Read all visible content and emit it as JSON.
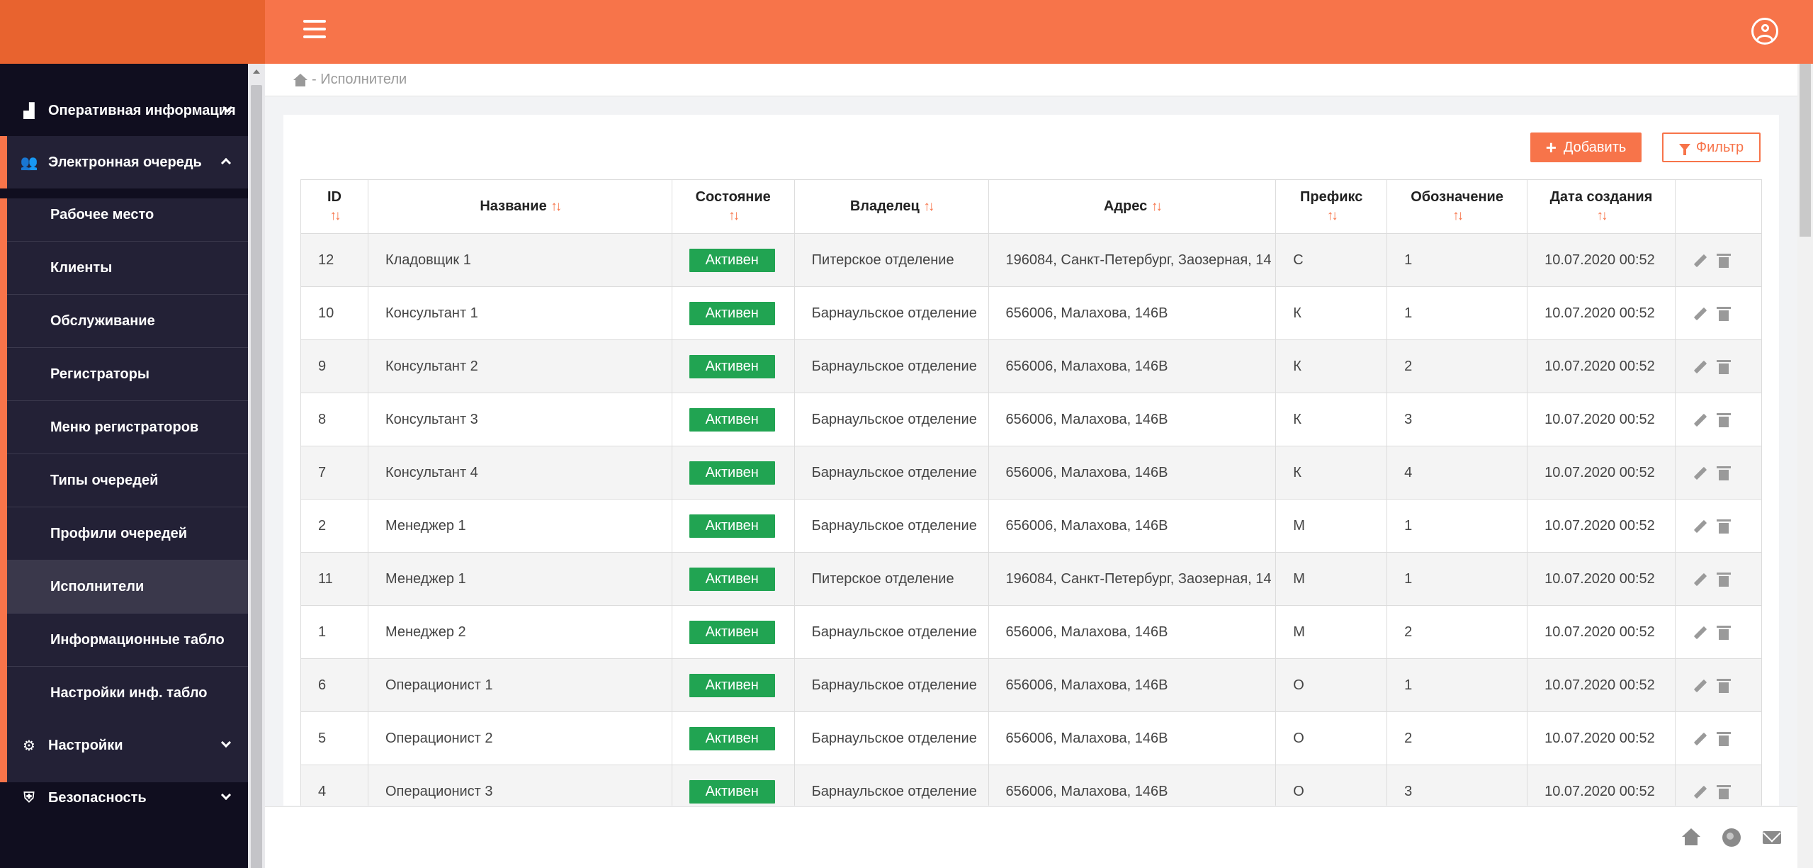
{
  "header": {
    "menu_icon": "hamburger-icon",
    "user_icon": "user-circle-icon"
  },
  "sidebar": {
    "top_items": [
      {
        "label": "Оперативная информация",
        "icon": "chart-icon"
      },
      {
        "label": "Электронная очередь",
        "icon": "users-icon"
      }
    ],
    "submenu": [
      {
        "label": "Рабочее место"
      },
      {
        "label": "Клиенты"
      },
      {
        "label": "Обслуживание"
      },
      {
        "label": "Регистраторы"
      },
      {
        "label": "Меню регистраторов"
      },
      {
        "label": "Типы очередей"
      },
      {
        "label": "Профили очередей"
      },
      {
        "label": "Исполнители",
        "active": true
      },
      {
        "label": "Информационные табло"
      },
      {
        "label": "Настройки инф. табло"
      }
    ],
    "bottom_items": [
      {
        "label": "Настройки",
        "icon": "gear-icon"
      },
      {
        "label": "Безопасность",
        "icon": "shield-icon"
      }
    ]
  },
  "breadcrumb": {
    "text": "- Исполнители"
  },
  "toolbar": {
    "add_label": "Добавить",
    "filter_label": "Фильтр"
  },
  "table": {
    "headers": [
      "ID",
      "Название",
      "Состояние",
      "Владелец",
      "Адрес",
      "Префикс",
      "Обозначение",
      "Дата создания"
    ],
    "rows": [
      {
        "id": "12",
        "name": "Кладовщик 1",
        "status": "Активен",
        "owner": "Питерское отделение",
        "address": "196084, Санкт-Петербург, Заозерная, 14",
        "prefix": "С",
        "designation": "1",
        "created": "10.07.2020 00:52"
      },
      {
        "id": "10",
        "name": "Консультант 1",
        "status": "Активен",
        "owner": "Барнаульское отделение",
        "address": "656006, Малахова, 146В",
        "prefix": "К",
        "designation": "1",
        "created": "10.07.2020 00:52"
      },
      {
        "id": "9",
        "name": "Консультант 2",
        "status": "Активен",
        "owner": "Барнаульское отделение",
        "address": "656006, Малахова, 146В",
        "prefix": "К",
        "designation": "2",
        "created": "10.07.2020 00:52"
      },
      {
        "id": "8",
        "name": "Консультант 3",
        "status": "Активен",
        "owner": "Барнаульское отделение",
        "address": "656006, Малахова, 146В",
        "prefix": "К",
        "designation": "3",
        "created": "10.07.2020 00:52"
      },
      {
        "id": "7",
        "name": "Консультант 4",
        "status": "Активен",
        "owner": "Барнаульское отделение",
        "address": "656006, Малахова, 146В",
        "prefix": "К",
        "designation": "4",
        "created": "10.07.2020 00:52"
      },
      {
        "id": "2",
        "name": "Менеджер 1",
        "status": "Активен",
        "owner": "Барнаульское отделение",
        "address": "656006, Малахова, 146В",
        "prefix": "М",
        "designation": "1",
        "created": "10.07.2020 00:52"
      },
      {
        "id": "11",
        "name": "Менеджер 1",
        "status": "Активен",
        "owner": "Питерское отделение",
        "address": "196084, Санкт-Петербург, Заозерная, 14",
        "prefix": "М",
        "designation": "1",
        "created": "10.07.2020 00:52"
      },
      {
        "id": "1",
        "name": "Менеджер 2",
        "status": "Активен",
        "owner": "Барнаульское отделение",
        "address": "656006, Малахова, 146В",
        "prefix": "М",
        "designation": "2",
        "created": "10.07.2020 00:52"
      },
      {
        "id": "6",
        "name": "Операционист 1",
        "status": "Активен",
        "owner": "Барнаульское отделение",
        "address": "656006, Малахова, 146В",
        "prefix": "О",
        "designation": "1",
        "created": "10.07.2020 00:52"
      },
      {
        "id": "5",
        "name": "Операционист 2",
        "status": "Активен",
        "owner": "Барнаульское отделение",
        "address": "656006, Малахова, 146В",
        "prefix": "О",
        "designation": "2",
        "created": "10.07.2020 00:52"
      },
      {
        "id": "4",
        "name": "Операционист 3",
        "status": "Активен",
        "owner": "Барнаульское отделение",
        "address": "656006, Малахова, 146В",
        "prefix": "О",
        "designation": "3",
        "created": "10.07.2020 00:52"
      }
    ]
  },
  "footer": {
    "icons": [
      "home-icon",
      "globe-icon",
      "mail-icon"
    ]
  },
  "colors": {
    "accent": "#f7744a",
    "sidebar": "#100e1f",
    "status_active": "#21a452"
  }
}
